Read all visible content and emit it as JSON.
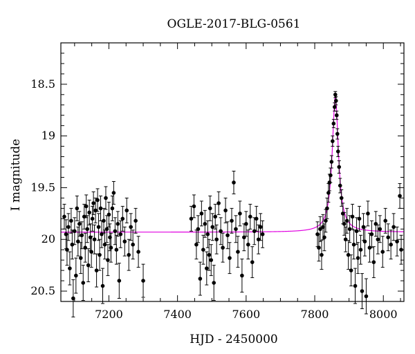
{
  "chart_data": {
    "type": "scatter",
    "title": "OGLE-2017-BLG-0561",
    "xlabel": "HJD - 2450000",
    "ylabel": "I magnitude",
    "xlim": [
      7060,
      8060
    ],
    "ylim": [
      20.6,
      18.1
    ],
    "y_inverted": true,
    "grid": false,
    "x_ticks": [
      7200,
      7400,
      7600,
      7800,
      8000
    ],
    "y_ticks": [
      18.5,
      19,
      19.5,
      20,
      20.5
    ],
    "x_tick_labels": [
      "7200",
      "7400",
      "7600",
      "7800",
      "8000"
    ],
    "y_tick_labels": [
      "18.5",
      "19",
      "19.5",
      "20",
      "20.5"
    ],
    "model_color": "#e000e0",
    "model": {
      "baseline": 19.93,
      "t0": 7860,
      "peak": 18.62,
      "tE": 11
    },
    "series": [
      {
        "points": [
          {
            "x": 7070,
            "y": 19.78,
            "e": 0.12
          },
          {
            "x": 7075,
            "y": 19.95,
            "e": 0.14
          },
          {
            "x": 7078,
            "y": 20.1,
            "e": 0.15
          },
          {
            "x": 7082,
            "y": 19.88,
            "e": 0.13
          },
          {
            "x": 7086,
            "y": 20.28,
            "e": 0.16
          },
          {
            "x": 7090,
            "y": 19.82,
            "e": 0.12
          },
          {
            "x": 7093,
            "y": 20.05,
            "e": 0.14
          },
          {
            "x": 7096,
            "y": 20.57,
            "e": 0.18
          },
          {
            "x": 7100,
            "y": 19.92,
            "e": 0.13
          },
          {
            "x": 7104,
            "y": 20.35,
            "e": 0.17
          },
          {
            "x": 7107,
            "y": 19.7,
            "e": 0.12
          },
          {
            "x": 7110,
            "y": 20.02,
            "e": 0.14
          },
          {
            "x": 7114,
            "y": 19.85,
            "e": 0.12
          },
          {
            "x": 7118,
            "y": 20.18,
            "e": 0.15
          },
          {
            "x": 7121,
            "y": 19.96,
            "e": 0.13
          },
          {
            "x": 7125,
            "y": 20.42,
            "e": 0.17
          },
          {
            "x": 7128,
            "y": 19.78,
            "e": 0.12
          },
          {
            "x": 7131,
            "y": 20.08,
            "e": 0.14
          },
          {
            "x": 7134,
            "y": 19.68,
            "e": 0.11
          },
          {
            "x": 7137,
            "y": 19.9,
            "e": 0.13
          },
          {
            "x": 7140,
            "y": 20.25,
            "e": 0.16
          },
          {
            "x": 7143,
            "y": 19.74,
            "e": 0.12
          },
          {
            "x": 7146,
            "y": 19.98,
            "e": 0.13
          },
          {
            "x": 7149,
            "y": 20.12,
            "e": 0.15
          },
          {
            "x": 7152,
            "y": 19.8,
            "e": 0.12
          },
          {
            "x": 7155,
            "y": 19.65,
            "e": 0.11
          },
          {
            "x": 7158,
            "y": 20.0,
            "e": 0.14
          },
          {
            "x": 7161,
            "y": 19.72,
            "e": 0.12
          },
          {
            "x": 7164,
            "y": 20.3,
            "e": 0.16
          },
          {
            "x": 7167,
            "y": 19.62,
            "e": 0.11
          },
          {
            "x": 7170,
            "y": 19.88,
            "e": 0.13
          },
          {
            "x": 7173,
            "y": 20.15,
            "e": 0.15
          },
          {
            "x": 7176,
            "y": 19.7,
            "e": 0.12
          },
          {
            "x": 7179,
            "y": 19.95,
            "e": 0.13
          },
          {
            "x": 7182,
            "y": 20.45,
            "e": 0.17
          },
          {
            "x": 7185,
            "y": 19.82,
            "e": 0.12
          },
          {
            "x": 7188,
            "y": 20.05,
            "e": 0.14
          },
          {
            "x": 7191,
            "y": 19.6,
            "e": 0.11
          },
          {
            "x": 7194,
            "y": 19.9,
            "e": 0.13
          },
          {
            "x": 7197,
            "y": 20.2,
            "e": 0.15
          },
          {
            "x": 7200,
            "y": 19.76,
            "e": 0.12
          },
          {
            "x": 7203,
            "y": 19.98,
            "e": 0.13
          },
          {
            "x": 7206,
            "y": 20.08,
            "e": 0.14
          },
          {
            "x": 7210,
            "y": 19.7,
            "e": 0.12
          },
          {
            "x": 7214,
            "y": 19.55,
            "e": 0.11
          },
          {
            "x": 7218,
            "y": 19.92,
            "e": 0.13
          },
          {
            "x": 7222,
            "y": 20.1,
            "e": 0.14
          },
          {
            "x": 7226,
            "y": 19.85,
            "e": 0.12
          },
          {
            "x": 7230,
            "y": 20.4,
            "e": 0.17
          },
          {
            "x": 7234,
            "y": 19.95,
            "e": 0.13
          },
          {
            "x": 7240,
            "y": 19.8,
            "e": 0.12
          },
          {
            "x": 7246,
            "y": 20.02,
            "e": 0.14
          },
          {
            "x": 7252,
            "y": 19.72,
            "e": 0.12
          },
          {
            "x": 7258,
            "y": 20.15,
            "e": 0.15
          },
          {
            "x": 7264,
            "y": 19.88,
            "e": 0.13
          },
          {
            "x": 7270,
            "y": 20.05,
            "e": 0.14
          },
          {
            "x": 7278,
            "y": 19.82,
            "e": 0.12
          },
          {
            "x": 7286,
            "y": 20.12,
            "e": 0.15
          },
          {
            "x": 7300,
            "y": 20.4,
            "e": 0.16
          },
          {
            "x": 7440,
            "y": 19.8,
            "e": 0.12
          },
          {
            "x": 7448,
            "y": 19.68,
            "e": 0.11
          },
          {
            "x": 7455,
            "y": 20.05,
            "e": 0.14
          },
          {
            "x": 7460,
            "y": 19.9,
            "e": 0.13
          },
          {
            "x": 7466,
            "y": 20.38,
            "e": 0.16
          },
          {
            "x": 7470,
            "y": 19.75,
            "e": 0.12
          },
          {
            "x": 7475,
            "y": 20.1,
            "e": 0.14
          },
          {
            "x": 7480,
            "y": 19.85,
            "e": 0.13
          },
          {
            "x": 7485,
            "y": 20.28,
            "e": 0.16
          },
          {
            "x": 7488,
            "y": 19.95,
            "e": 0.13
          },
          {
            "x": 7492,
            "y": 20.15,
            "e": 0.15
          },
          {
            "x": 7495,
            "y": 19.7,
            "e": 0.12
          },
          {
            "x": 7498,
            "y": 20.2,
            "e": 0.15
          },
          {
            "x": 7502,
            "y": 19.88,
            "e": 0.13
          },
          {
            "x": 7506,
            "y": 20.42,
            "e": 0.17
          },
          {
            "x": 7510,
            "y": 19.78,
            "e": 0.12
          },
          {
            "x": 7514,
            "y": 20.0,
            "e": 0.14
          },
          {
            "x": 7520,
            "y": 19.65,
            "e": 0.11
          },
          {
            "x": 7526,
            "y": 19.92,
            "e": 0.13
          },
          {
            "x": 7532,
            "y": 20.08,
            "e": 0.14
          },
          {
            "x": 7540,
            "y": 19.72,
            "e": 0.12
          },
          {
            "x": 7546,
            "y": 19.96,
            "e": 0.13
          },
          {
            "x": 7552,
            "y": 20.18,
            "e": 0.15
          },
          {
            "x": 7558,
            "y": 19.82,
            "e": 0.12
          },
          {
            "x": 7564,
            "y": 19.45,
            "e": 0.11
          },
          {
            "x": 7570,
            "y": 19.9,
            "e": 0.13
          },
          {
            "x": 7576,
            "y": 20.12,
            "e": 0.15
          },
          {
            "x": 7582,
            "y": 19.75,
            "e": 0.12
          },
          {
            "x": 7588,
            "y": 20.35,
            "e": 0.16
          },
          {
            "x": 7594,
            "y": 19.98,
            "e": 0.13
          },
          {
            "x": 7600,
            "y": 19.85,
            "e": 0.12
          },
          {
            "x": 7606,
            "y": 20.05,
            "e": 0.14
          },
          {
            "x": 7612,
            "y": 19.78,
            "e": 0.12
          },
          {
            "x": 7618,
            "y": 20.22,
            "e": 0.15
          },
          {
            "x": 7624,
            "y": 19.92,
            "e": 0.13
          },
          {
            "x": 7630,
            "y": 19.8,
            "e": 0.12
          },
          {
            "x": 7636,
            "y": 20.0,
            "e": 0.14
          },
          {
            "x": 7642,
            "y": 19.88,
            "e": 0.13
          },
          {
            "x": 7648,
            "y": 19.95,
            "e": 0.13
          },
          {
            "x": 7808,
            "y": 19.95,
            "e": 0.12
          },
          {
            "x": 7812,
            "y": 20.08,
            "e": 0.13
          },
          {
            "x": 7816,
            "y": 19.9,
            "e": 0.12
          },
          {
            "x": 7820,
            "y": 20.15,
            "e": 0.14
          },
          {
            "x": 7824,
            "y": 19.88,
            "e": 0.12
          },
          {
            "x": 7828,
            "y": 19.98,
            "e": 0.13
          },
          {
            "x": 7832,
            "y": 19.82,
            "e": 0.11
          },
          {
            "x": 7836,
            "y": 19.7,
            "e": 0.1
          },
          {
            "x": 7840,
            "y": 19.55,
            "e": 0.09
          },
          {
            "x": 7843,
            "y": 19.45,
            "e": 0.08
          },
          {
            "x": 7846,
            "y": 19.38,
            "e": 0.07
          },
          {
            "x": 7849,
            "y": 19.25,
            "e": 0.06
          },
          {
            "x": 7852,
            "y": 19.05,
            "e": 0.05
          },
          {
            "x": 7855,
            "y": 18.88,
            "e": 0.04
          },
          {
            "x": 7858,
            "y": 18.72,
            "e": 0.04
          },
          {
            "x": 7860,
            "y": 18.6,
            "e": 0.03
          },
          {
            "x": 7862,
            "y": 18.66,
            "e": 0.04
          },
          {
            "x": 7864,
            "y": 18.8,
            "e": 0.04
          },
          {
            "x": 7866,
            "y": 18.98,
            "e": 0.05
          },
          {
            "x": 7868,
            "y": 19.15,
            "e": 0.05
          },
          {
            "x": 7871,
            "y": 19.3,
            "e": 0.06
          },
          {
            "x": 7874,
            "y": 19.48,
            "e": 0.07
          },
          {
            "x": 7878,
            "y": 19.6,
            "e": 0.08
          },
          {
            "x": 7882,
            "y": 19.75,
            "e": 0.1
          },
          {
            "x": 7886,
            "y": 19.85,
            "e": 0.11
          },
          {
            "x": 7890,
            "y": 20.0,
            "e": 0.12
          },
          {
            "x": 7894,
            "y": 19.82,
            "e": 0.12
          },
          {
            "x": 7898,
            "y": 20.15,
            "e": 0.14
          },
          {
            "x": 7902,
            "y": 19.9,
            "e": 0.13
          },
          {
            "x": 7906,
            "y": 20.3,
            "e": 0.15
          },
          {
            "x": 7910,
            "y": 19.78,
            "e": 0.12
          },
          {
            "x": 7914,
            "y": 20.05,
            "e": 0.14
          },
          {
            "x": 7918,
            "y": 20.45,
            "e": 0.17
          },
          {
            "x": 7922,
            "y": 19.92,
            "e": 0.13
          },
          {
            "x": 7926,
            "y": 20.18,
            "e": 0.15
          },
          {
            "x": 7930,
            "y": 19.8,
            "e": 0.12
          },
          {
            "x": 7934,
            "y": 20.1,
            "e": 0.14
          },
          {
            "x": 7938,
            "y": 20.5,
            "e": 0.17
          },
          {
            "x": 7942,
            "y": 19.88,
            "e": 0.13
          },
          {
            "x": 7946,
            "y": 20.02,
            "e": 0.14
          },
          {
            "x": 7950,
            "y": 20.55,
            "e": 0.17
          },
          {
            "x": 7955,
            "y": 19.75,
            "e": 0.12
          },
          {
            "x": 7960,
            "y": 20.08,
            "e": 0.14
          },
          {
            "x": 7966,
            "y": 19.95,
            "e": 0.13
          },
          {
            "x": 7972,
            "y": 20.22,
            "e": 0.15
          },
          {
            "x": 7978,
            "y": 19.85,
            "e": 0.12
          },
          {
            "x": 7984,
            "y": 20.0,
            "e": 0.14
          },
          {
            "x": 7990,
            "y": 19.9,
            "e": 0.13
          },
          {
            "x": 7998,
            "y": 20.12,
            "e": 0.15
          },
          {
            "x": 8006,
            "y": 19.82,
            "e": 0.12
          },
          {
            "x": 8014,
            "y": 19.98,
            "e": 0.13
          },
          {
            "x": 8022,
            "y": 20.05,
            "e": 0.14
          },
          {
            "x": 8030,
            "y": 19.88,
            "e": 0.13
          },
          {
            "x": 8040,
            "y": 20.02,
            "e": 0.14
          },
          {
            "x": 8048,
            "y": 19.58,
            "e": 0.12
          },
          {
            "x": 8052,
            "y": 20.1,
            "e": 0.14
          }
        ]
      }
    ]
  }
}
